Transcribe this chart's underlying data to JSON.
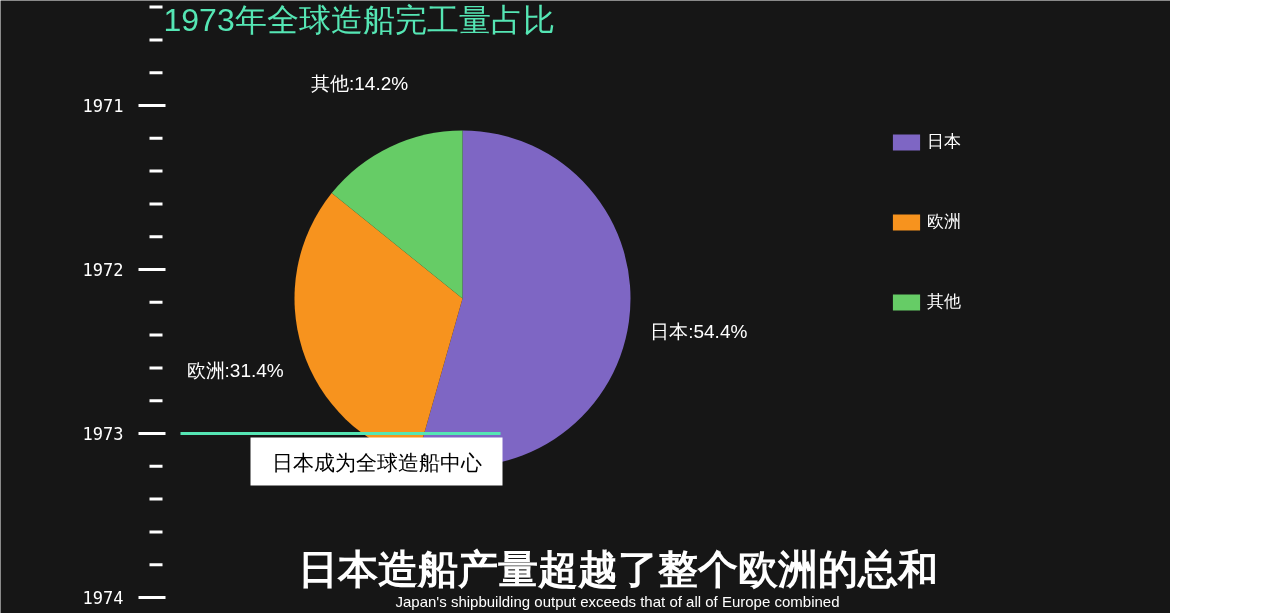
{
  "chart_data": {
    "type": "pie",
    "title": "1973年全球造船完工量占比",
    "categories": [
      "日本",
      "欧洲",
      "其他"
    ],
    "values": [
      54.4,
      31.4,
      14.2
    ],
    "colors": [
      "#7e66c4",
      "#f7931e",
      "#66cc66"
    ],
    "value_labels": [
      "日本:54.4%",
      "欧洲:31.4%",
      "其他:14.2%"
    ],
    "legend": "right",
    "annotations": [
      "1971",
      "1972",
      "1973",
      "1974",
      "日本成为全球造船中心",
      "日本造船产量超越了整个欧洲的总和",
      "Japan's shipbuilding output exceeds that of all of Europe combined"
    ]
  }
}
